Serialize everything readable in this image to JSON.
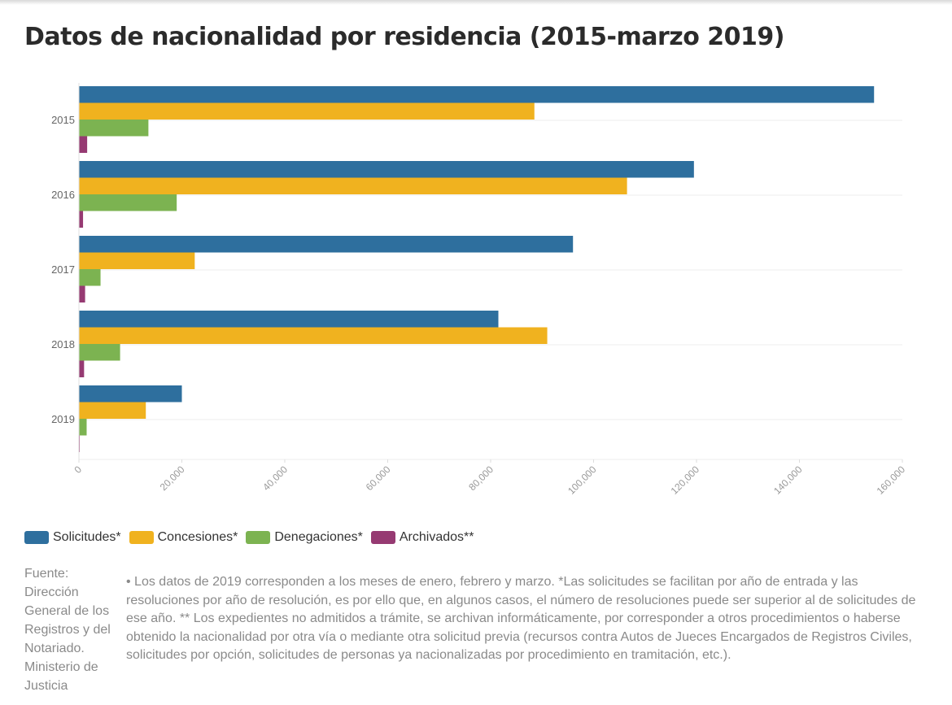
{
  "title": "Datos de nacionalidad por residencia (2015-marzo 2019)",
  "chart_data": {
    "type": "bar",
    "orientation": "horizontal",
    "categories": [
      "2015",
      "2016",
      "2017",
      "2018",
      "2019"
    ],
    "series": [
      {
        "name": "Solicitudes*",
        "color": "#2e6f9e",
        "values": [
          154500,
          119500,
          96000,
          81500,
          20000
        ]
      },
      {
        "name": "Concesiones*",
        "color": "#f0b21f",
        "values": [
          88500,
          106500,
          22500,
          91000,
          13000
        ]
      },
      {
        "name": "Denegaciones*",
        "color": "#7cb351",
        "values": [
          13500,
          19000,
          4200,
          8000,
          1500
        ]
      },
      {
        "name": "Archivados**",
        "color": "#963a72",
        "values": [
          1600,
          800,
          1200,
          1000,
          150
        ]
      }
    ],
    "xlim": [
      0,
      160000
    ],
    "xticks": [
      0,
      20000,
      40000,
      60000,
      80000,
      100000,
      120000,
      140000,
      160000
    ],
    "xtick_labels": [
      "0",
      "20,000",
      "40,000",
      "60,000",
      "80,000",
      "100,000",
      "120,000",
      "140,000",
      "160,000"
    ],
    "grid": true,
    "legend_position": "bottom-left"
  },
  "source": "Fuente: Dirección General de los Registros y del Notariado. Ministerio de Justicia",
  "notes": "• Los datos de 2019 corresponden a los meses de enero, febrero y marzo. *Las solicitudes se facilitan por año de entrada y las resoluciones por año de resolución, es por ello que, en algunos casos, el número de resoluciones puede ser superior al de solicitudes de ese año. ** Los expedientes no admitidos a trámite, se archivan informáticamente, por corresponder a otros procedimientos o haberse obtenido la nacionalidad por otra vía o mediante otra solicitud previa (recursos contra Autos de Jueces Encargados de Registros Civiles, solicitudes por opción, solicitudes de personas ya nacionalizadas por procedimiento en tramitación, etc.)."
}
